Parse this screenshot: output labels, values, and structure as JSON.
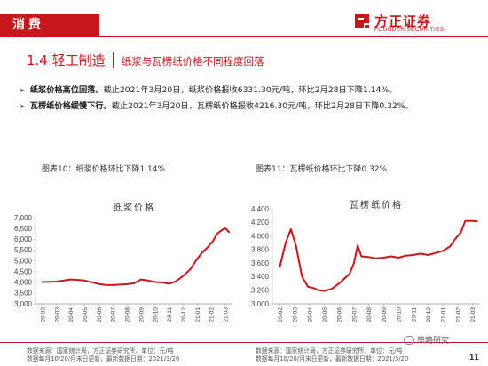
{
  "header": {
    "section": "消费",
    "logo_name": "方正证券",
    "logo_en": "FOUNDER SECURITIES"
  },
  "heading": {
    "number": "1.4 轻工制造",
    "subtitle": "纸浆与瓦楞纸价格不同程度回落"
  },
  "bullets": [
    {
      "bold": "纸浆价格高位回落。",
      "text": "截止2021年3月20日，纸浆价格报收6331.30元/吨，环比2月28日下降1.14%。"
    },
    {
      "bold": "瓦楞纸价格缓慢下行。",
      "text": "截止2021年3月20日，瓦楞纸价格报收4216.30元/吨，环比2月28日下降0.32%。"
    }
  ],
  "figures": {
    "left_label": "图表10：纸浆价格环比下降1.14%",
    "right_label": "图表11：瓦楞纸价格环比下降0.32%"
  },
  "sources": {
    "left_1": "数据来源：国家统计局，方正证券研究所，单位：元/吨",
    "left_2": "数据每月10/20/月末日更新，最新数据日期：2021/3/20",
    "right_1": "数据来源：国家统计局，方正证券研究所，单位：元/吨",
    "right_2": "数据每月10/20/月末日更新，最新数据日期：2021/3/20"
  },
  "watermark": "策略研究",
  "page_number": "11",
  "colors": {
    "brand": "#c8161d",
    "series": "#c8161d"
  },
  "chart_data": [
    {
      "type": "line",
      "title": "纸浆价格",
      "x": [
        "20-02",
        "20-03",
        "20-04",
        "20-05",
        "20-06",
        "20-07",
        "20-08",
        "20-09",
        "20-10",
        "20-11",
        "20-12",
        "21-01",
        "21-02",
        "21-03"
      ],
      "yticks": [
        3000,
        3500,
        4000,
        4500,
        5000,
        5500,
        6000,
        6500,
        7000
      ],
      "ylim": [
        3000,
        7000
      ],
      "series": [
        {
          "points": [
            [
              0,
              4010
            ],
            [
              0.5,
              4020
            ],
            [
              1,
              4030
            ],
            [
              1.5,
              4080
            ],
            [
              2,
              4130
            ],
            [
              2.5,
              4110
            ],
            [
              3,
              4080
            ],
            [
              3.5,
              4000
            ],
            [
              4,
              3920
            ],
            [
              4.5,
              3880
            ],
            [
              5,
              3870
            ],
            [
              5.5,
              3890
            ],
            [
              6,
              3910
            ],
            [
              6.5,
              3950
            ],
            [
              7,
              4130
            ],
            [
              7.5,
              4080
            ],
            [
              8,
              4010
            ],
            [
              8.5,
              3990
            ],
            [
              9,
              3930
            ],
            [
              9.5,
              4050
            ],
            [
              10,
              4300
            ],
            [
              10.5,
              4600
            ],
            [
              10.9,
              5000
            ],
            [
              11.3,
              5350
            ],
            [
              11.7,
              5600
            ],
            [
              12.1,
              5900
            ],
            [
              12.4,
              6250
            ],
            [
              12.8,
              6450
            ],
            [
              13,
              6500
            ],
            [
              13.25,
              6331
            ]
          ]
        }
      ]
    },
    {
      "type": "line",
      "title": "瓦楞纸价格",
      "x": [
        "20-02",
        "20-03",
        "20-04",
        "20-05",
        "20-06",
        "20-07",
        "20-08",
        "20-09",
        "20-10",
        "20-11",
        "20-12",
        "21-01",
        "21-02",
        "21-03"
      ],
      "yticks": [
        3000,
        3200,
        3400,
        3600,
        3800,
        4000,
        4200,
        4400
      ],
      "ylim": [
        3000,
        4400
      ],
      "series": [
        {
          "points": [
            [
              0,
              3550
            ],
            [
              0.4,
              3900
            ],
            [
              0.75,
              4100
            ],
            [
              1.1,
              3850
            ],
            [
              1.5,
              3400
            ],
            [
              1.9,
              3250
            ],
            [
              2.3,
              3230
            ],
            [
              2.6,
              3200
            ],
            [
              3,
              3190
            ],
            [
              3.5,
              3220
            ],
            [
              4,
              3300
            ],
            [
              4.3,
              3360
            ],
            [
              4.7,
              3440
            ],
            [
              5,
              3600
            ],
            [
              5.25,
              3860
            ],
            [
              5.5,
              3700
            ],
            [
              6,
              3690
            ],
            [
              6.5,
              3670
            ],
            [
              7,
              3680
            ],
            [
              7.5,
              3700
            ],
            [
              8,
              3680
            ],
            [
              8.5,
              3710
            ],
            [
              9,
              3720
            ],
            [
              9.5,
              3740
            ],
            [
              10,
              3720
            ],
            [
              10.5,
              3750
            ],
            [
              11,
              3780
            ],
            [
              11.5,
              3850
            ],
            [
              11.8,
              3950
            ],
            [
              12.2,
              4050
            ],
            [
              12.5,
              4220
            ],
            [
              13,
              4220
            ],
            [
              13.3,
              4216
            ]
          ]
        }
      ]
    }
  ]
}
